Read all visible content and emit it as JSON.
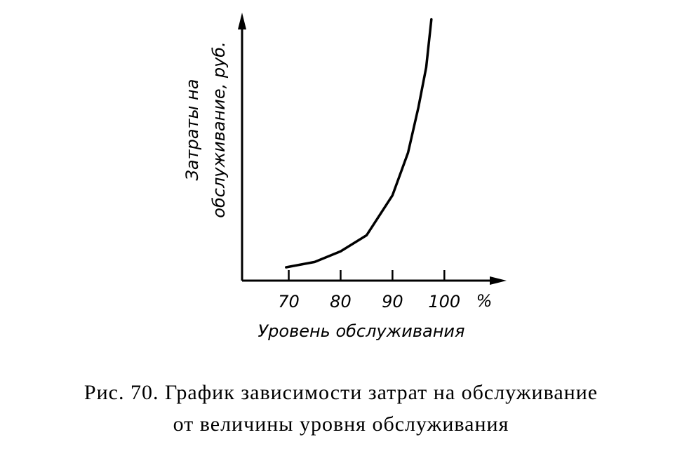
{
  "chart_data": {
    "type": "line",
    "caption": [
      "Рис. 70. График зависимости затрат на обслуживание",
      "от величины уровня обслуживания"
    ],
    "x_label": "Уровень обслуживания",
    "x_unit": "%",
    "y_label": [
      "Затраты на",
      "обслуживание, руб."
    ],
    "x": [
      69.5,
      75,
      80,
      85,
      90,
      93,
      95,
      96.5,
      97.5
    ],
    "values": [
      5,
      7,
      11,
      17,
      32,
      48,
      65,
      80,
      98
    ],
    "color": "#000000",
    "xlim": [
      61,
      112
    ],
    "xticks": [
      70,
      80,
      90,
      100
    ],
    "ylim": [
      0,
      100
    ]
  }
}
